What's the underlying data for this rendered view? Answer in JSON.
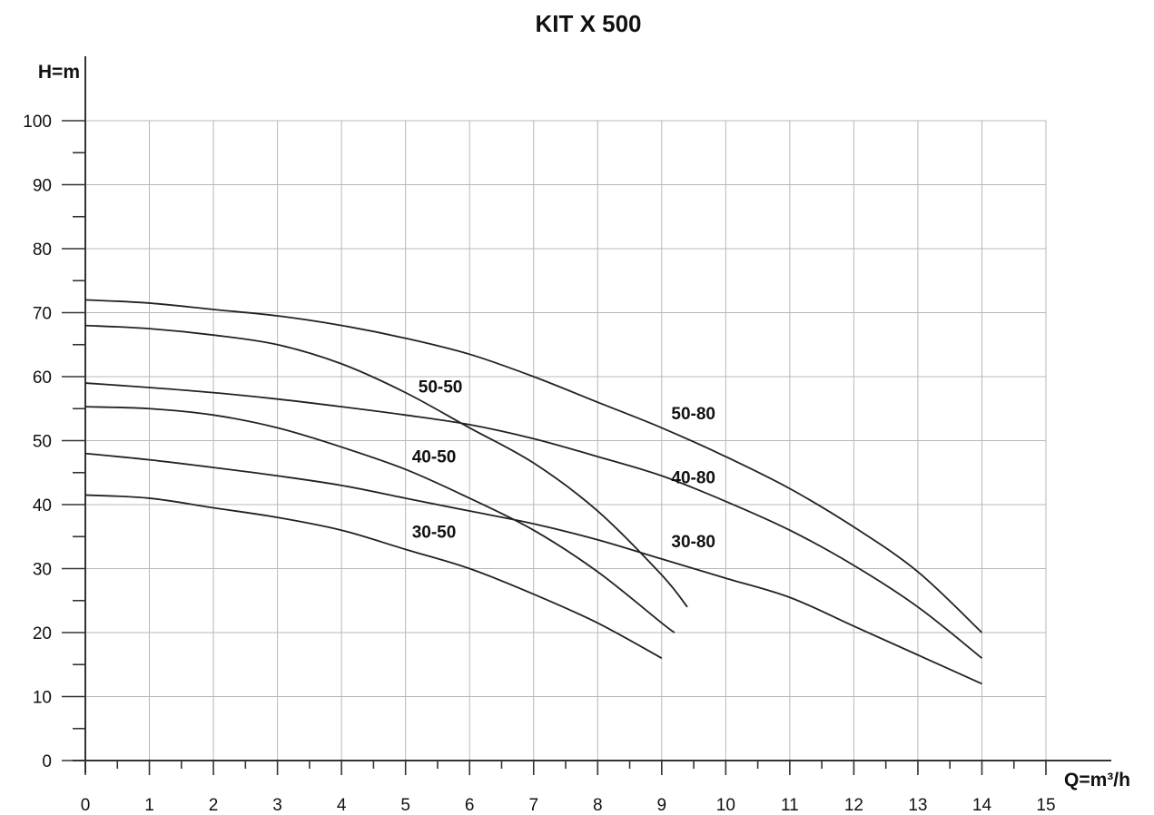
{
  "chart_data": {
    "type": "line",
    "title": "KIT X 500",
    "xlabel": "Q=m³/h",
    "ylabel": "H=m",
    "xlim": [
      0,
      15
    ],
    "ylim": [
      0,
      100
    ],
    "x_ticks": [
      "0",
      "1",
      "2",
      "3",
      "4",
      "5",
      "6",
      "7",
      "8",
      "9",
      "10",
      "11",
      "12",
      "13",
      "14",
      "15"
    ],
    "y_ticks": [
      "0",
      "10",
      "20",
      "30",
      "40",
      "50",
      "60",
      "70",
      "80",
      "90",
      "100"
    ],
    "grid": true,
    "series": [
      {
        "name": "50-50",
        "x": [
          0,
          1,
          2,
          3,
          4,
          5,
          6,
          7,
          8,
          9,
          9.4
        ],
        "y": [
          68,
          67.5,
          66.5,
          65,
          62,
          57.5,
          52,
          46.5,
          39,
          29,
          24
        ]
      },
      {
        "name": "40-50",
        "x": [
          0,
          1,
          2,
          3,
          4,
          5,
          6,
          7,
          8,
          9,
          9.2
        ],
        "y": [
          55.3,
          55,
          54,
          52,
          49,
          45.5,
          41,
          36,
          29.5,
          21.5,
          20
        ]
      },
      {
        "name": "30-50",
        "x": [
          0,
          1,
          2,
          3,
          4,
          5,
          6,
          7,
          8,
          9
        ],
        "y": [
          41.5,
          41,
          39.5,
          38,
          36,
          33,
          30,
          26,
          21.5,
          16
        ]
      },
      {
        "name": "50-80",
        "x": [
          0,
          1,
          2,
          3,
          4,
          5,
          6,
          7,
          8,
          9,
          10,
          11,
          12,
          13,
          14
        ],
        "y": [
          72,
          71.5,
          70.5,
          69.5,
          68,
          66,
          63.5,
          60,
          56,
          52,
          47.5,
          42.5,
          36.5,
          29.5,
          20
        ]
      },
      {
        "name": "40-80",
        "x": [
          0,
          1,
          2,
          3,
          4,
          5,
          6,
          7,
          8,
          9,
          10,
          11,
          12,
          13,
          14
        ],
        "y": [
          59,
          58.3,
          57.5,
          56.5,
          55.3,
          54,
          52.5,
          50.3,
          47.5,
          44.5,
          40.5,
          36,
          30.5,
          24,
          16
        ]
      },
      {
        "name": "30-80",
        "x": [
          0,
          1,
          2,
          3,
          4,
          5,
          6,
          7,
          8,
          9,
          10,
          11,
          12,
          13,
          14
        ],
        "y": [
          48,
          47,
          45.8,
          44.5,
          43,
          41,
          39,
          37,
          34.5,
          31.5,
          28.5,
          25.5,
          21,
          16.5,
          12
        ]
      }
    ],
    "series_labels": [
      {
        "name": "50-50",
        "x": 5.2,
        "y": 57.5
      },
      {
        "name": "40-50",
        "x": 5.1,
        "y": 46.6
      },
      {
        "name": "30-50",
        "x": 5.1,
        "y": 34.8
      },
      {
        "name": "50-80",
        "x": 9.15,
        "y": 53.3
      },
      {
        "name": "40-80",
        "x": 9.15,
        "y": 43.3
      },
      {
        "name": "30-80",
        "x": 9.15,
        "y": 33.3
      }
    ]
  }
}
